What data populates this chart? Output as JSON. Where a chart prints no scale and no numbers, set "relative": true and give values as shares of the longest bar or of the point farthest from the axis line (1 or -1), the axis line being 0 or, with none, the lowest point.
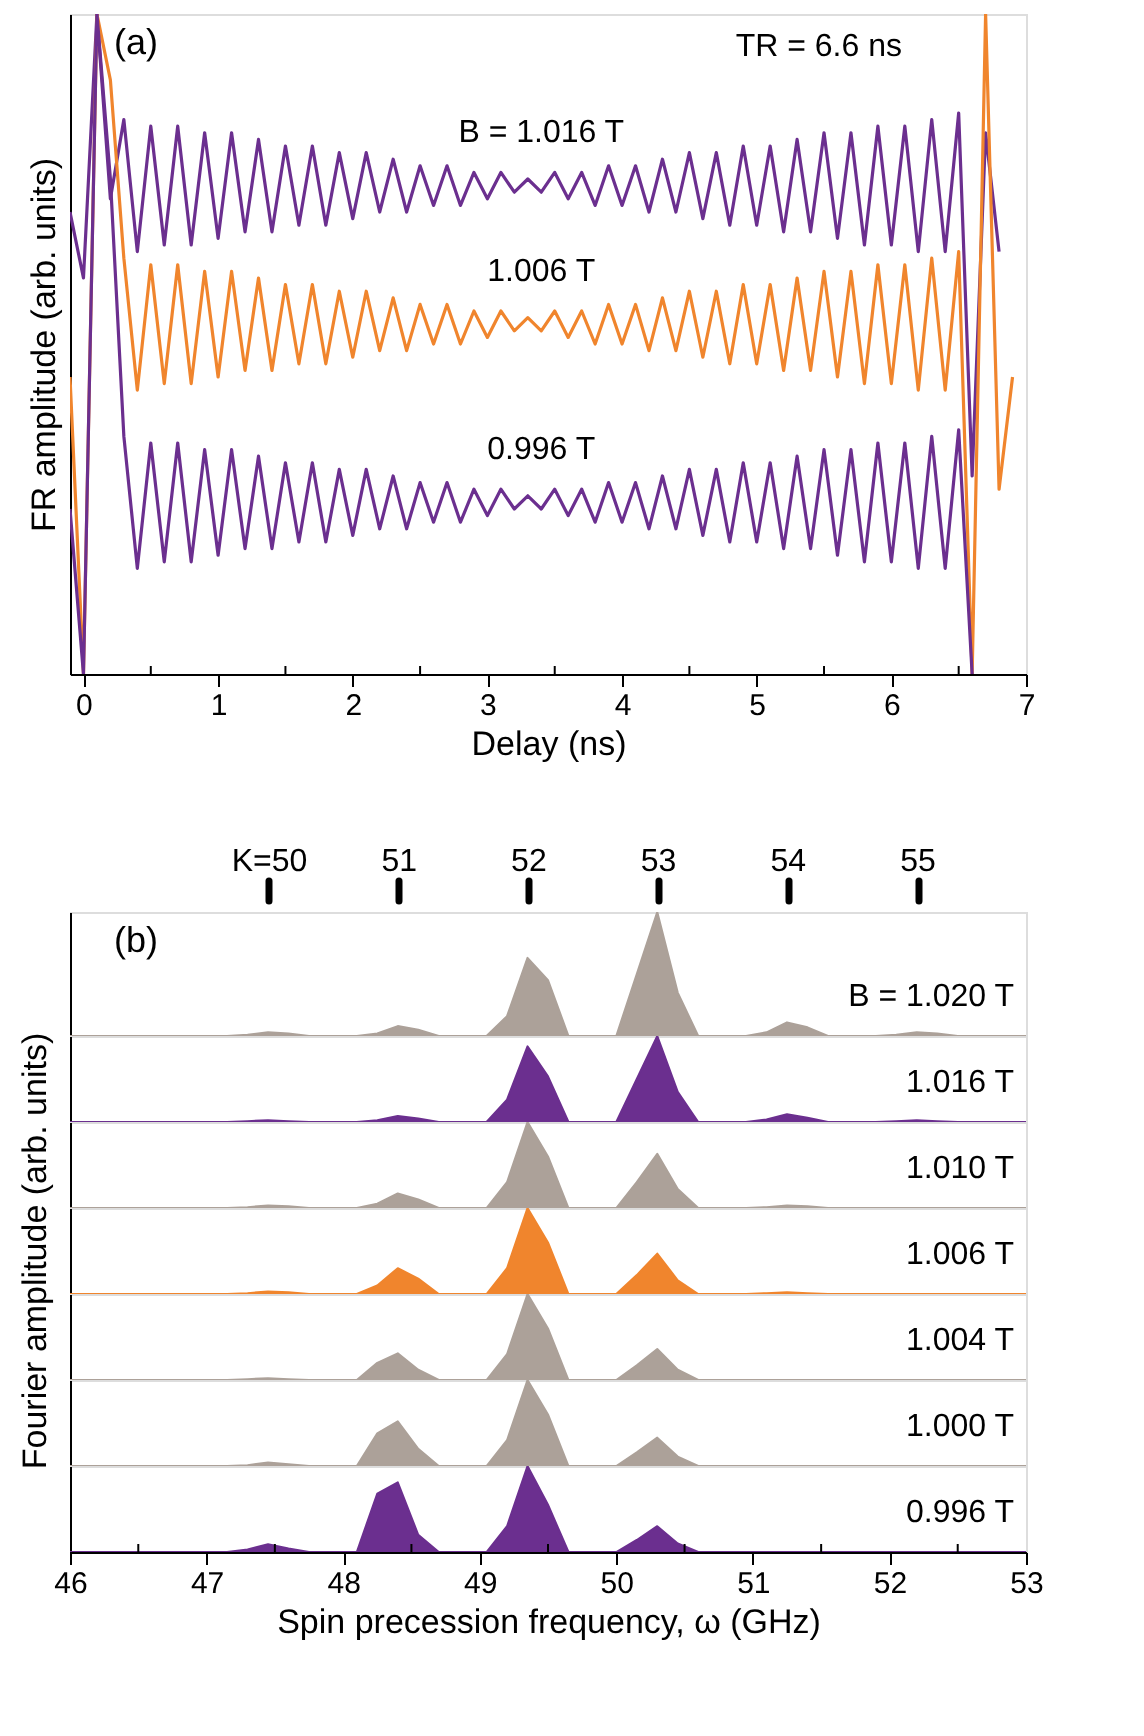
{
  "chart_data": [
    {
      "type": "line",
      "relative": true,
      "xlabel": "Delay (ns)",
      "ylabel": "FR amplitude (arb. units)",
      "annotations": [
        "(a)",
        "TR = 6.6 ns"
      ],
      "xlim": [
        -0.1,
        7
      ],
      "xticks": [
        0,
        {
          "value": 0.5,
          "label": null
        },
        1,
        {
          "value": 1.5,
          "label": null
        },
        2,
        {
          "value": 2.5,
          "label": null
        },
        3,
        {
          "value": 3.5,
          "label": null
        },
        4,
        {
          "value": 4.5,
          "label": null
        },
        5,
        {
          "value": 5.5,
          "label": null
        },
        6,
        {
          "value": 6.5,
          "label": null
        },
        7
      ],
      "grid": false,
      "x": [
        -0.1,
        0,
        0.1,
        0.2,
        0.3,
        0.4,
        0.5,
        0.6,
        0.7,
        0.8,
        0.9,
        1.0,
        1.1,
        1.2,
        1.3,
        1.4,
        1.5,
        1.6,
        1.7,
        1.8,
        1.9,
        2.0,
        2.1,
        2.2,
        2.3,
        2.4,
        2.5,
        2.6,
        2.7,
        2.8,
        2.9,
        3.0,
        3.1,
        3.2,
        3.3,
        3.4,
        3.5,
        3.6,
        3.7,
        3.8,
        3.9,
        4.0,
        4.1,
        4.2,
        4.3,
        4.4,
        4.5,
        4.6,
        4.7,
        4.8,
        4.9,
        5.0,
        5.1,
        5.2,
        5.3,
        5.4,
        5.5,
        5.6,
        5.7,
        5.8,
        5.9,
        6.0,
        6.1,
        6.2,
        6.3,
        6.4,
        6.5,
        6.6,
        6.7,
        6.8,
        6.9
      ],
      "series": [
        {
          "name": "B = 1.016 T",
          "color": "#6b2f8f",
          "values": [
            0.7,
            0.6,
            1.0,
            0.72,
            0.84,
            0.64,
            0.83,
            0.65,
            0.83,
            0.65,
            0.82,
            0.66,
            0.82,
            0.67,
            0.81,
            0.67,
            0.8,
            0.68,
            0.8,
            0.68,
            0.79,
            0.69,
            0.79,
            0.7,
            0.78,
            0.7,
            0.77,
            0.71,
            0.77,
            0.71,
            0.76,
            0.72,
            0.76,
            0.73,
            0.75,
            0.73,
            0.76,
            0.72,
            0.76,
            0.71,
            0.77,
            0.71,
            0.77,
            0.7,
            0.78,
            0.7,
            0.79,
            0.69,
            0.79,
            0.68,
            0.8,
            0.68,
            0.8,
            0.67,
            0.81,
            0.67,
            0.82,
            0.66,
            0.82,
            0.65,
            0.83,
            0.65,
            0.83,
            0.64,
            0.84,
            0.64,
            0.85,
            0.3,
            0.82,
            0.64,
            null
          ]
        },
        {
          "name": "1.006 T",
          "color": "#f0852d",
          "values": [
            0.45,
            0.0,
            1.0,
            0.9,
            0.63,
            0.43,
            0.62,
            0.44,
            0.62,
            0.44,
            0.61,
            0.45,
            0.61,
            0.46,
            0.6,
            0.46,
            0.59,
            0.47,
            0.59,
            0.47,
            0.58,
            0.48,
            0.58,
            0.49,
            0.57,
            0.49,
            0.56,
            0.5,
            0.56,
            0.5,
            0.55,
            0.51,
            0.55,
            0.52,
            0.54,
            0.52,
            0.55,
            0.51,
            0.55,
            0.5,
            0.56,
            0.5,
            0.56,
            0.49,
            0.57,
            0.49,
            0.58,
            0.48,
            0.58,
            0.47,
            0.59,
            0.47,
            0.59,
            0.46,
            0.6,
            0.46,
            0.61,
            0.45,
            0.61,
            0.44,
            0.62,
            0.44,
            0.62,
            0.43,
            0.63,
            0.43,
            0.64,
            0.0,
            1.0,
            0.28,
            0.45
          ]
        },
        {
          "name": "0.996 T",
          "color": "#6b2f8f",
          "values": [
            0.25,
            0.0,
            1.0,
            0.75,
            0.36,
            0.16,
            0.35,
            0.17,
            0.35,
            0.17,
            0.34,
            0.18,
            0.34,
            0.19,
            0.33,
            0.19,
            0.32,
            0.2,
            0.32,
            0.2,
            0.31,
            0.21,
            0.31,
            0.22,
            0.3,
            0.22,
            0.29,
            0.23,
            0.29,
            0.23,
            0.28,
            0.24,
            0.28,
            0.25,
            0.27,
            0.25,
            0.28,
            0.24,
            0.28,
            0.23,
            0.29,
            0.23,
            0.29,
            0.22,
            0.3,
            0.22,
            0.31,
            0.21,
            0.31,
            0.2,
            0.32,
            0.2,
            0.32,
            0.19,
            0.33,
            0.19,
            0.34,
            0.18,
            0.34,
            0.17,
            0.35,
            0.17,
            0.35,
            0.16,
            0.36,
            0.16,
            0.37,
            0.0,
            null,
            null,
            null
          ]
        }
      ]
    },
    {
      "type": "area",
      "relative": true,
      "tick_labels": false,
      "xlim": [
        46,
        53
      ],
      "grid": false,
      "annotations": [
        "(b)"
      ],
      "x2lim": [
        48.47,
        55.84
      ],
      "x2ticks": [
        {
          "value": 50,
          "label": "K=50"
        },
        51,
        52,
        53,
        54,
        55
      ],
      "x": [
        46,
        46.5,
        47.15,
        47.3,
        47.45,
        47.6,
        47.75,
        48.1,
        48.25,
        48.4,
        48.55,
        48.7,
        49.05,
        49.2,
        49.35,
        49.5,
        49.65,
        50.0,
        50.15,
        50.3,
        50.45,
        50.6,
        50.95,
        51.1,
        51.25,
        51.4,
        51.55,
        51.9,
        52.05,
        52.2,
        52.35,
        52.5,
        53
      ],
      "series": [
        {
          "name": "B = 1.020 T",
          "color": "#aca199",
          "values": [
            0,
            0,
            0,
            0.01,
            0.03,
            0.02,
            0,
            0,
            0.02,
            0.08,
            0.05,
            0,
            0,
            0.16,
            0.63,
            0.45,
            0,
            0,
            0.5,
            1,
            0.35,
            0,
            0,
            0.03,
            0.11,
            0.07,
            0,
            0,
            0.01,
            0.03,
            0.02,
            0,
            0
          ]
        }
      ]
    },
    {
      "type": "area",
      "relative": true,
      "tick_labels": false,
      "xlim": [
        46,
        53
      ],
      "grid": false,
      "x": [
        46,
        46.5,
        47.15,
        47.3,
        47.45,
        47.6,
        47.75,
        48.1,
        48.25,
        48.4,
        48.55,
        48.7,
        49.05,
        49.2,
        49.35,
        49.5,
        49.65,
        50.0,
        50.15,
        50.3,
        50.45,
        50.6,
        50.95,
        51.1,
        51.25,
        51.4,
        51.55,
        51.9,
        52.05,
        52.2,
        52.35,
        52.5,
        53
      ],
      "series": [
        {
          "name": "1.016 T",
          "color": "#6b2f8f",
          "values": [
            0,
            0,
            0,
            0.01,
            0.02,
            0.01,
            0,
            0,
            0.02,
            0.07,
            0.04,
            0,
            0,
            0.26,
            0.88,
            0.53,
            0,
            0,
            0.5,
            1,
            0.35,
            0,
            0,
            0.03,
            0.09,
            0.05,
            0,
            0,
            0.01,
            0.02,
            0.01,
            0,
            0
          ]
        }
      ]
    },
    {
      "type": "area",
      "relative": true,
      "tick_labels": false,
      "xlim": [
        46,
        53
      ],
      "grid": false,
      "x": [
        46,
        46.5,
        47.15,
        47.3,
        47.45,
        47.6,
        47.75,
        48.1,
        48.25,
        48.4,
        48.55,
        48.7,
        49.05,
        49.2,
        49.35,
        49.5,
        49.65,
        50.0,
        50.15,
        50.3,
        50.45,
        50.6,
        50.95,
        51.1,
        51.25,
        51.4,
        51.55,
        51.9,
        52.05,
        52.2,
        52.35,
        52.5,
        53
      ],
      "series": [
        {
          "name": "1.010 T",
          "color": "#aca199",
          "values": [
            0,
            0,
            0,
            0.01,
            0.03,
            0.02,
            0,
            0,
            0.05,
            0.17,
            0.1,
            0,
            0,
            0.3,
            1,
            0.6,
            0,
            0,
            0.3,
            0.63,
            0.22,
            0,
            0,
            0.01,
            0.03,
            0.02,
            0,
            0,
            0,
            0,
            0,
            0,
            0
          ]
        }
      ]
    },
    {
      "type": "area",
      "relative": true,
      "tick_labels": false,
      "xlim": [
        46,
        53
      ],
      "grid": false,
      "ylabel": "Fourier amplitude (arb. units)",
      "x": [
        46,
        46.5,
        47.15,
        47.3,
        47.45,
        47.6,
        47.75,
        48.1,
        48.25,
        48.4,
        48.55,
        48.7,
        49.05,
        49.2,
        49.35,
        49.5,
        49.65,
        50.0,
        50.15,
        50.3,
        50.45,
        50.6,
        50.95,
        51.1,
        51.25,
        51.4,
        51.55,
        51.9,
        52.05,
        52.2,
        52.35,
        52.5,
        53
      ],
      "series": [
        {
          "name": "1.006 T",
          "color": "#f0852d",
          "values": [
            0,
            0,
            0,
            0.01,
            0.03,
            0.02,
            0,
            0,
            0.1,
            0.3,
            0.18,
            0,
            0,
            0.3,
            1,
            0.6,
            0,
            0,
            0.22,
            0.47,
            0.16,
            0,
            0,
            0.01,
            0.02,
            0.01,
            0,
            0,
            0,
            0,
            0,
            0,
            0
          ]
        }
      ]
    },
    {
      "type": "area",
      "relative": true,
      "tick_labels": false,
      "xlim": [
        46,
        53
      ],
      "grid": false,
      "x": [
        46,
        46.5,
        47.15,
        47.3,
        47.45,
        47.6,
        47.75,
        48.1,
        48.25,
        48.4,
        48.55,
        48.7,
        49.05,
        49.2,
        49.35,
        49.5,
        49.65,
        50.0,
        50.15,
        50.3,
        50.45,
        50.6,
        50.95,
        51.1,
        51.25,
        51.4,
        51.55,
        51.9,
        52.05,
        52.2,
        52.35,
        52.5,
        53
      ],
      "series": [
        {
          "name": "1.004 T",
          "color": "#aca199",
          "values": [
            0,
            0,
            0,
            0.01,
            0.02,
            0.01,
            0,
            0,
            0.2,
            0.31,
            0.12,
            0,
            0,
            0.3,
            1,
            0.6,
            0,
            0,
            0.17,
            0.36,
            0.12,
            0,
            0,
            0,
            0,
            0,
            0,
            0,
            0,
            0,
            0,
            0,
            0
          ]
        }
      ]
    },
    {
      "type": "area",
      "relative": true,
      "tick_labels": false,
      "xlim": [
        46,
        53
      ],
      "grid": false,
      "x": [
        46,
        46.5,
        47.15,
        47.3,
        47.45,
        47.6,
        47.75,
        48.1,
        48.25,
        48.4,
        48.55,
        48.7,
        49.05,
        49.2,
        49.35,
        49.5,
        49.65,
        50.0,
        50.15,
        50.3,
        50.45,
        50.6,
        50.95,
        51.1,
        51.25,
        51.4,
        51.55,
        51.9,
        52.05,
        52.2,
        52.35,
        52.5,
        53
      ],
      "series": [
        {
          "name": "1.000 T",
          "color": "#aca199",
          "values": [
            0,
            0,
            0,
            0.01,
            0.04,
            0.02,
            0,
            0,
            0.38,
            0.52,
            0.2,
            0,
            0,
            0.3,
            1,
            0.6,
            0,
            0,
            0.16,
            0.33,
            0.11,
            0,
            0,
            0,
            0,
            0,
            0,
            0,
            0,
            0,
            0,
            0,
            0
          ]
        }
      ]
    },
    {
      "type": "area",
      "relative": true,
      "tick_labels": "x",
      "xlim": [
        46,
        53
      ],
      "grid": false,
      "xlabel": "Spin precession frequency, ω (GHz)",
      "xticks": [
        46,
        {
          "value": 46.5,
          "label": null
        },
        47,
        {
          "value": 47.5,
          "label": null
        },
        48,
        {
          "value": 48.5,
          "label": null
        },
        49,
        {
          "value": 49.5,
          "label": null
        },
        50,
        {
          "value": 50.5,
          "label": null
        },
        51,
        {
          "value": 51.5,
          "label": null
        },
        52,
        {
          "value": 52.5,
          "label": null
        },
        53
      ],
      "x": [
        46,
        46.5,
        47.15,
        47.3,
        47.45,
        47.6,
        47.75,
        48.1,
        48.25,
        48.4,
        48.55,
        48.7,
        49.05,
        49.2,
        49.35,
        49.5,
        49.65,
        50.0,
        50.15,
        50.3,
        50.45,
        50.6,
        50.95,
        51.1,
        51.25,
        51.4,
        51.55,
        51.9,
        52.05,
        52.2,
        52.35,
        52.5,
        53
      ],
      "series": [
        {
          "name": "0.996 T",
          "color": "#6b2f8f",
          "values": [
            0,
            0,
            0,
            0.03,
            0.09,
            0.04,
            0,
            0,
            0.68,
            0.81,
            0.2,
            0,
            0,
            0.3,
            1,
            0.55,
            0,
            0,
            0.14,
            0.3,
            0.1,
            0,
            0,
            0,
            0,
            0,
            0,
            0,
            0,
            0,
            0,
            0,
            0
          ]
        }
      ]
    }
  ]
}
